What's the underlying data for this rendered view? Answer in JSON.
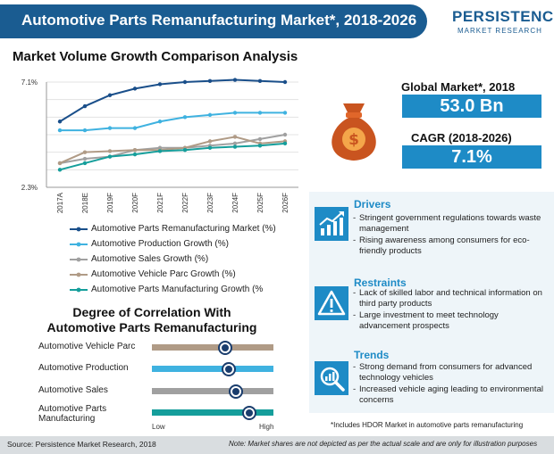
{
  "header": {
    "title": "Automotive Parts Remanufacturing Market*, 2018-2026",
    "logo_top": "PERSISTENCE",
    "logo_bottom": "MARKET RESEARCH"
  },
  "chart_data": {
    "type": "line",
    "title": "Market Volume Growth Comparison Analysis",
    "categories": [
      "2017A",
      "2018E",
      "2019F",
      "2020F",
      "2021F",
      "2022F",
      "2023F",
      "2024F",
      "2025F",
      "2026F"
    ],
    "ylim": [
      2.3,
      7.1
    ],
    "y_tick_labels": [
      "7.1%",
      "2.3%"
    ],
    "grid": "horizontal",
    "legend_position": "bottom",
    "series": [
      {
        "name": "Automotive Parts Remanufacturing Market  (%)",
        "color": "#1a4f8a",
        "values": [
          5.3,
          6.0,
          6.5,
          6.8,
          7.0,
          7.1,
          7.15,
          7.2,
          7.15,
          7.1
        ]
      },
      {
        "name": "Automotive Production Growth (%)",
        "color": "#3fb2e0",
        "values": [
          4.9,
          4.9,
          5.0,
          5.0,
          5.3,
          5.5,
          5.6,
          5.7,
          5.7,
          5.7
        ]
      },
      {
        "name": "Automotive Sales Growth (%)",
        "color": "#a0a0a0",
        "values": [
          3.4,
          3.6,
          3.7,
          4.0,
          4.1,
          4.1,
          4.2,
          4.3,
          4.5,
          4.7
        ]
      },
      {
        "name": "Automotive Vehicle Parc Growth (%)",
        "color": "#b09b86",
        "values": [
          3.4,
          3.9,
          3.95,
          4.0,
          4.0,
          4.1,
          4.4,
          4.6,
          4.3,
          4.4
        ]
      },
      {
        "name": "Automotive Parts Manufacturing Growth (%",
        "color": "#159e9b",
        "values": [
          3.1,
          3.4,
          3.7,
          3.8,
          3.95,
          4.0,
          4.1,
          4.15,
          4.2,
          4.3
        ]
      }
    ]
  },
  "correlation": {
    "title_line1": "Degree of Correlation With",
    "title_line2": "Automotive Parts Remanufacturing",
    "scale_low": "Low",
    "scale_high": "High",
    "items": [
      {
        "label": "Automotive Vehicle Parc",
        "color": "#b09b86",
        "level": 0.6
      },
      {
        "label": "Automotive Production",
        "color": "#3fb2e0",
        "level": 0.63
      },
      {
        "label": "Automotive Sales",
        "color": "#a0a0a0",
        "level": 0.69
      },
      {
        "label": "Automotive Parts Manufacturing",
        "color": "#159e9b",
        "level": 0.8
      }
    ]
  },
  "stats": {
    "global_label": "Global Market*, 2018",
    "global_value": "53.0 Bn",
    "cagr_label": "CAGR (2018-2026)",
    "cagr_value": "7.1%",
    "icon": "money-bag-icon"
  },
  "drivers": {
    "title": "Drivers",
    "icon": "growth-chart-icon",
    "items": [
      "Stringent government regulations towards waste management",
      "Rising awareness among consumers for eco-friendly products"
    ]
  },
  "restraints": {
    "title": "Restraints",
    "icon": "warning-icon",
    "items": [
      "Lack of skilled labor and technical information on third party products",
      "Large investment to meet technology advancement prospects"
    ]
  },
  "trends": {
    "title": "Trends",
    "icon": "magnifier-chart-icon",
    "items": [
      "Strong demand from consumers for advanced technology vehicles",
      "Increased vehicle aging leading to environmental concerns"
    ]
  },
  "footnote": "*Includes HDOR Market in automotive parts remanufacturing",
  "footer": {
    "source": "Source: Persistence Market Research, 2018",
    "note": "Note: Market shares are not depicted as per the actual scale and are only for illustration purposes"
  }
}
